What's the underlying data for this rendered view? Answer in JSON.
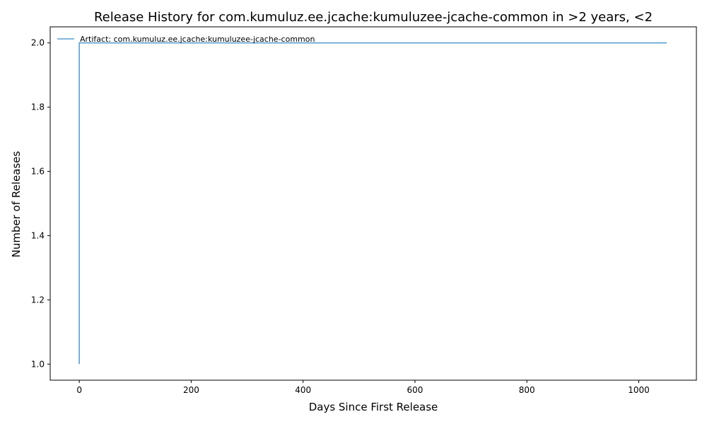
{
  "chart_data": {
    "type": "line",
    "title": "Release History for com.kumuluz.ee.jcache:kumuluzee-jcache-common in >2 years, <2",
    "xlabel": "Days Since First Release",
    "ylabel": "Number of Releases",
    "xlim": [
      -52,
      1103
    ],
    "ylim": [
      0.95,
      2.05
    ],
    "x_ticks": [
      0,
      200,
      400,
      600,
      800,
      1000
    ],
    "y_ticks": [
      1.0,
      1.2,
      1.4,
      1.6,
      1.8,
      2.0
    ],
    "grid": false,
    "legend_position": "top-left",
    "series": [
      {
        "name": "Artifact: com.kumuluz.ee.jcache:kumuluzee-jcache-common",
        "color": "#5b9fd0",
        "x": [
          0,
          0,
          1050
        ],
        "y": [
          1,
          2,
          2
        ]
      }
    ]
  }
}
